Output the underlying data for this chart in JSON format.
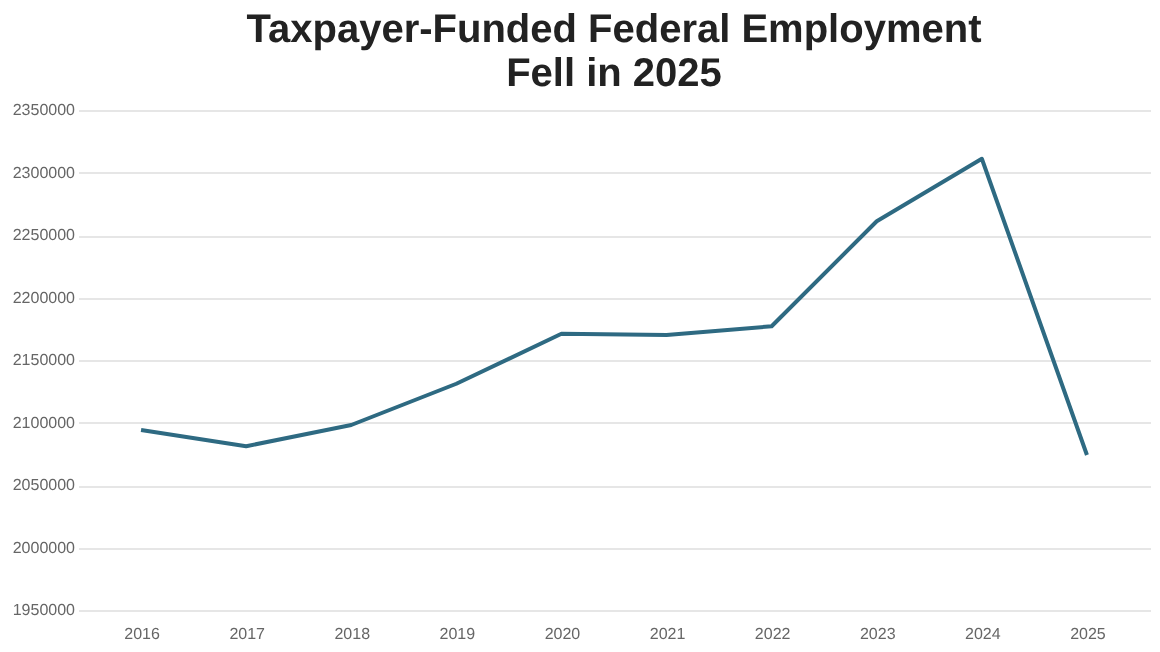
{
  "chart_data": {
    "type": "line",
    "title": [
      "Taxpayer-Funded Federal Employment",
      "Fell in 2025"
    ],
    "categories": [
      "2016",
      "2017",
      "2018",
      "2019",
      "2020",
      "2021",
      "2022",
      "2023",
      "2024",
      "2025"
    ],
    "series": [
      {
        "color": "#2e6a82",
        "values": [
          2094000,
          2081000,
          2098000,
          2131000,
          2171000,
          2170000,
          2177000,
          2261000,
          2311000,
          2074000
        ]
      }
    ],
    "ylim": [
      1950000,
      2350000
    ],
    "yticks": [
      1950000,
      2000000,
      2050000,
      2100000,
      2150000,
      2200000,
      2250000,
      2300000,
      2350000
    ],
    "grid": "y",
    "marker": "none",
    "line_style": "solid"
  }
}
